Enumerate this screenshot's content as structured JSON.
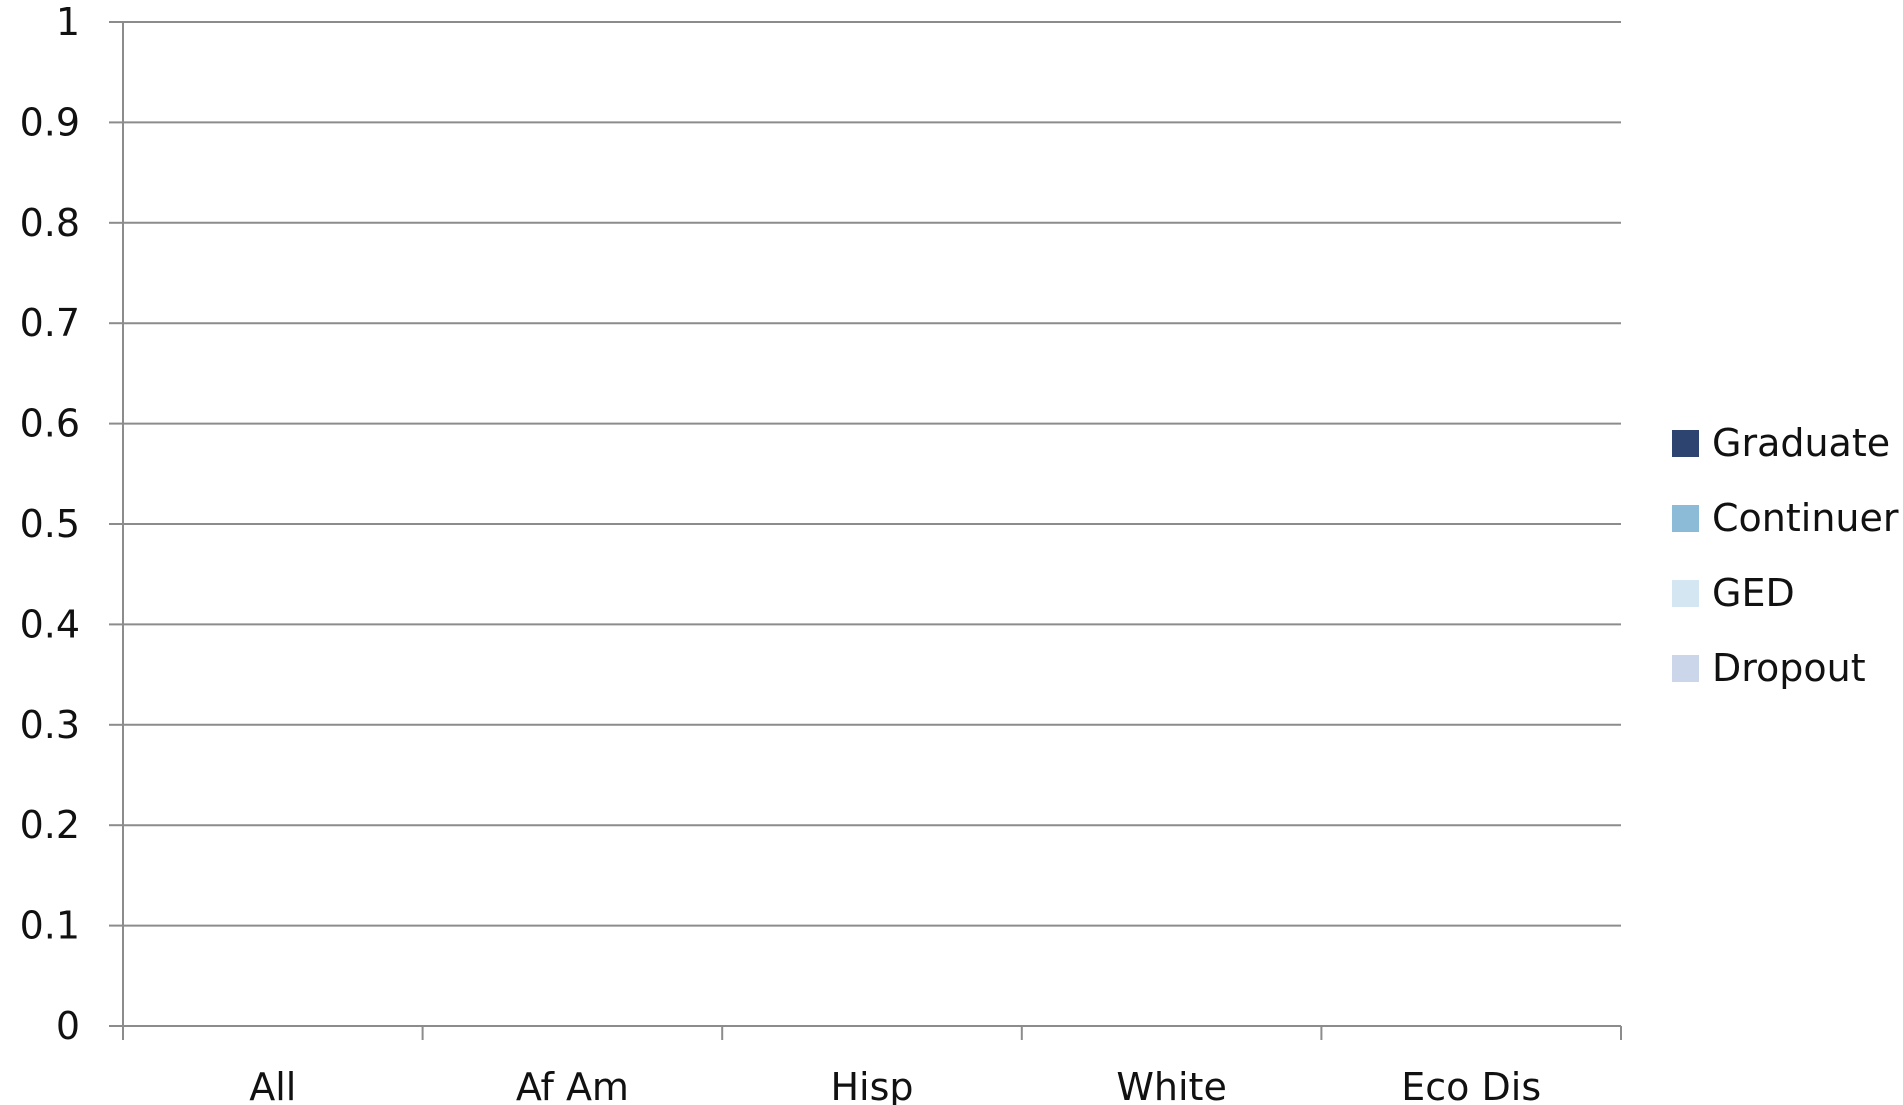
{
  "chart_data": {
    "type": "bar",
    "stacked": true,
    "title": "",
    "xlabel": "",
    "ylabel": "",
    "categories": [
      "All",
      "Af Am",
      "Hisp",
      "White",
      "Eco Dis"
    ],
    "ylim": [
      0,
      1
    ],
    "yticks": [
      "0",
      "0.1",
      "0.2",
      "0.3",
      "0.4",
      "0.5",
      "0.6",
      "0.7",
      "0.8",
      "0.9",
      "1"
    ],
    "grid": true,
    "legend_position": "right",
    "series": [
      {
        "name": "Graduate",
        "color": "#2e4470",
        "values": [
          null,
          null,
          null,
          null,
          null
        ]
      },
      {
        "name": "Continuer",
        "color": "#8bbbd6",
        "values": [
          null,
          null,
          null,
          null,
          null
        ]
      },
      {
        "name": "GED",
        "color": "#d5e6f3",
        "values": [
          null,
          null,
          null,
          null,
          null
        ]
      },
      {
        "name": "Dropout",
        "color": "#cbd6ea",
        "values": [
          null,
          null,
          null,
          null,
          null
        ]
      }
    ]
  }
}
